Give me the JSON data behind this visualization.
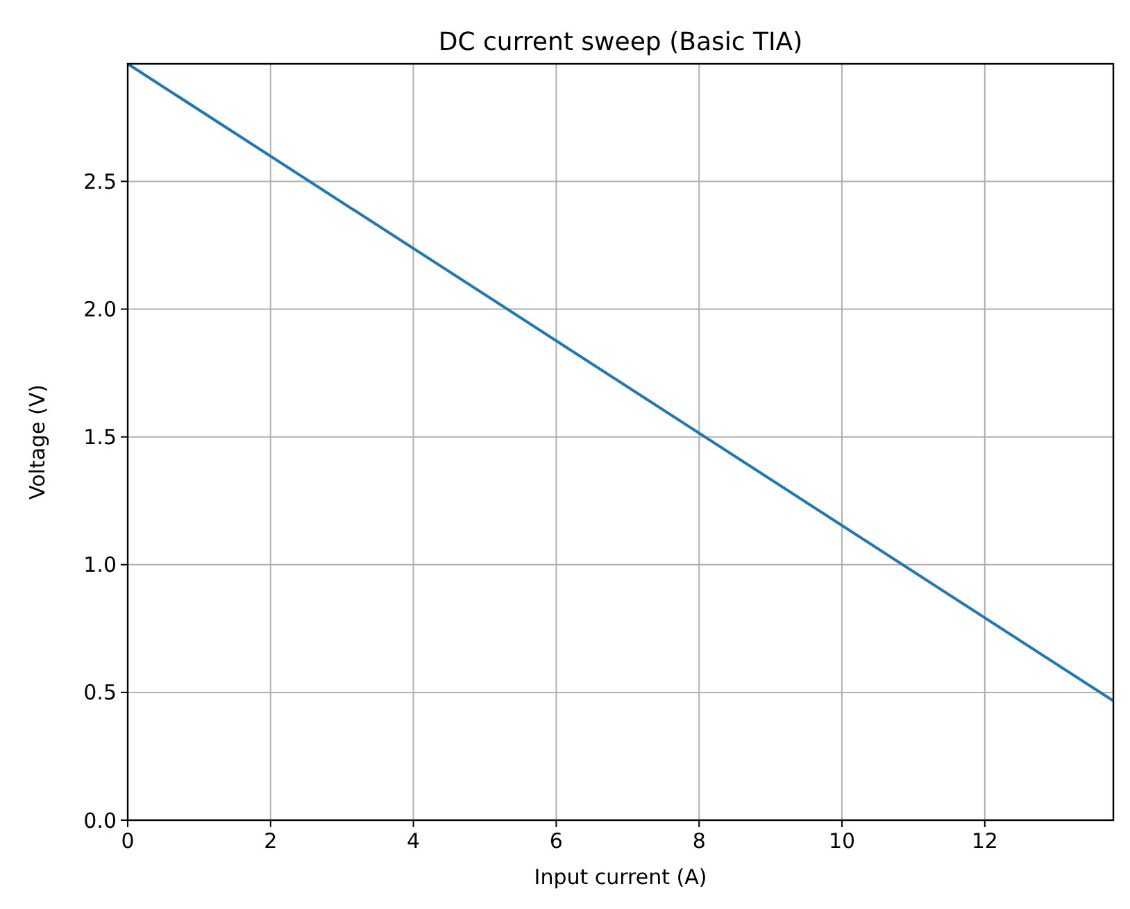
{
  "chart_data": {
    "type": "line",
    "title": "DC current sweep (Basic TIA)",
    "xlabel": "Input current (A)",
    "ylabel": "Voltage (V)",
    "x": [
      0,
      13.8
    ],
    "series": [
      {
        "color": "#1f77b4",
        "values": [
          2.96,
          0.467
        ]
      }
    ],
    "xlim": [
      0,
      13.8
    ],
    "ylim": [
      0,
      2.96
    ],
    "xticks": [
      0,
      2,
      4,
      6,
      8,
      10,
      12
    ],
    "yticks": [
      {
        "value": 0,
        "label": "0.0"
      },
      {
        "value": 0.5,
        "label": "0.5"
      },
      {
        "value": 1,
        "label": "1.0"
      },
      {
        "value": 1.5,
        "label": "1.5"
      },
      {
        "value": 2,
        "label": "2.0"
      },
      {
        "value": 2.5,
        "label": "2.5"
      }
    ],
    "grid": true,
    "marker": "none",
    "line_style": "solid"
  }
}
